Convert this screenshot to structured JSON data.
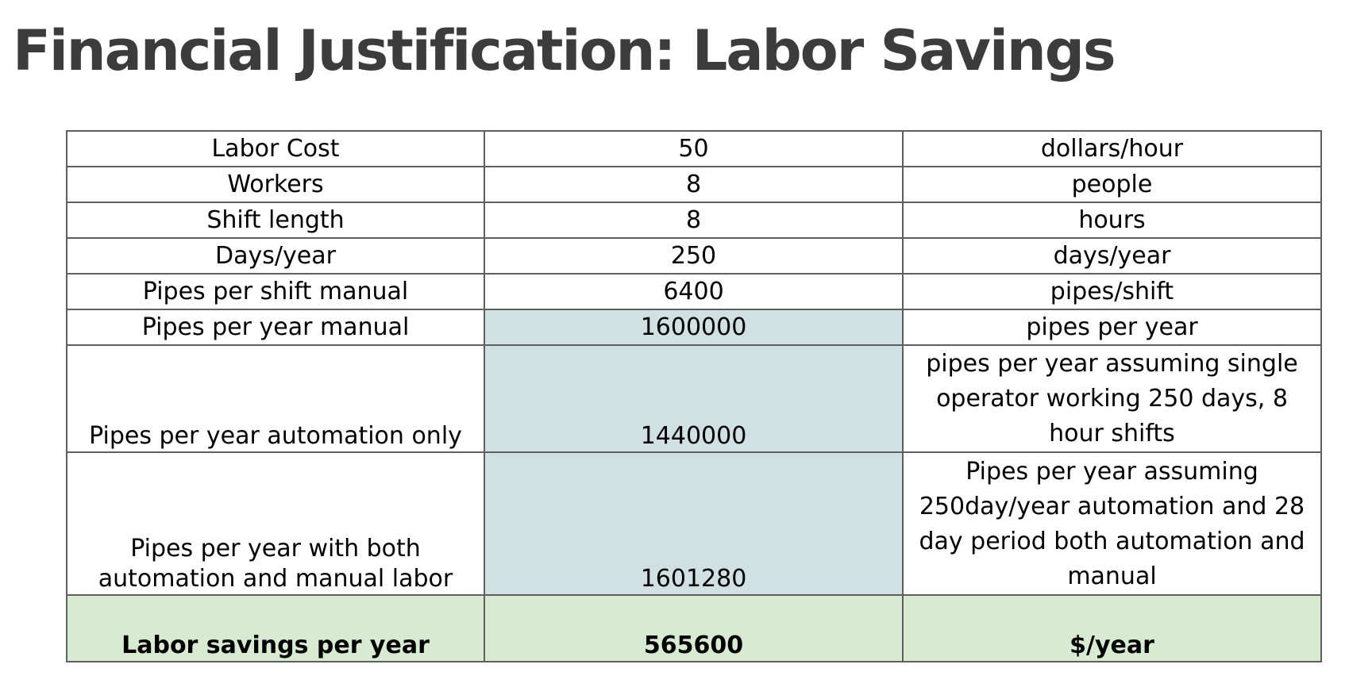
{
  "page": {
    "title": "Financial Justification: Labor Savings"
  },
  "table": {
    "rows": [
      {
        "label": "Labor Cost",
        "value": "50",
        "unit": "dollars/hour",
        "shaded": false
      },
      {
        "label": "Workers",
        "value": "8",
        "unit": "people",
        "shaded": false
      },
      {
        "label": "Shift length",
        "value": "8",
        "unit": "hours",
        "shaded": false
      },
      {
        "label": "Days/year",
        "value": "250",
        "unit": "days/year",
        "shaded": false
      },
      {
        "label": "Pipes per shift manual",
        "value": "6400",
        "unit": "pipes/shift",
        "shaded": false
      },
      {
        "label": "Pipes per year manual",
        "value": "1600000",
        "unit": "pipes per year",
        "shaded": true
      },
      {
        "label": "Pipes per year automation only",
        "value": "1440000",
        "unit": "pipes per year assuming single operator working 250 days, 8 hour shifts",
        "shaded": true
      },
      {
        "label": "Pipes per year with both automation and manual labor",
        "value": "1601280",
        "unit": "Pipes per year assuming 250day/year automation and 28 day period both automation and manual",
        "shaded": true
      }
    ],
    "total": {
      "label": "Labor savings per year",
      "value": "565600",
      "unit": "$/year"
    }
  },
  "colors": {
    "title": "#3c3c3c",
    "grid": "#5f5f5f",
    "shaded_value": "#d0e0e3",
    "total_row": "#d9ead3"
  }
}
